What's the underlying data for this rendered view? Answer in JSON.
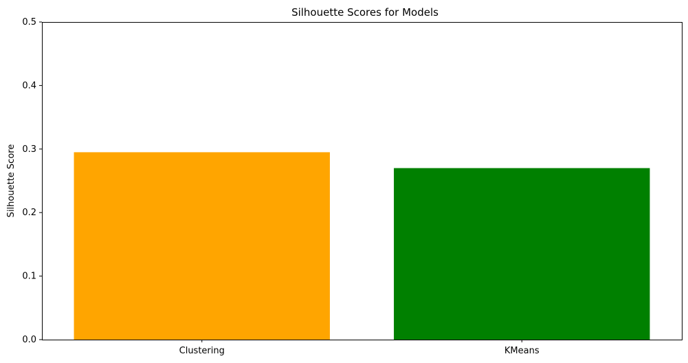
{
  "chart_data": {
    "type": "bar",
    "title": "Silhouette Scores for Models",
    "xlabel": "",
    "ylabel": "Silhouette Score",
    "categories": [
      "Clustering",
      "KMeans"
    ],
    "values": [
      0.295,
      0.27
    ],
    "colors": [
      "#FFA500",
      "#008000"
    ],
    "ylim": [
      0,
      0.5
    ],
    "yticks": [
      0.0,
      0.1,
      0.2,
      0.3,
      0.4,
      0.5
    ],
    "ytick_labels": [
      "0.0",
      "0.1",
      "0.2",
      "0.3",
      "0.4",
      "0.5"
    ],
    "grid": false,
    "legend": "none"
  }
}
